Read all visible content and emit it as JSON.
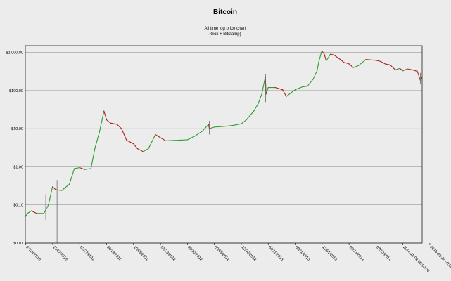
{
  "chart_data": {
    "type": "line",
    "title": "Bitcoin",
    "subtitle_lines": [
      "All time log price chart",
      "(Gox + Bitstamp)"
    ],
    "y_scale": "log",
    "ylim": [
      0.01,
      1500
    ],
    "y_ticks": [
      {
        "value": 1000,
        "label": "$1,000.00"
      },
      {
        "value": 100,
        "label": "$100.00"
      },
      {
        "value": 10,
        "label": "$10.00"
      },
      {
        "value": 1,
        "label": "$1.00"
      },
      {
        "value": 0.1,
        "label": "$0.10"
      },
      {
        "value": 0.01,
        "label": "$0.01"
      }
    ],
    "x_range": [
      "2010-07-16",
      "2015-01-21"
    ],
    "x_ticks": [
      {
        "date": "2010-07-18",
        "label": "07/18/2010"
      },
      {
        "date": "2010-11-07",
        "label": "11/07/2010"
      },
      {
        "date": "2011-02-27",
        "label": "02/27/2011"
      },
      {
        "date": "2011-06-19",
        "label": "06/19/2011"
      },
      {
        "date": "2011-10-09",
        "label": "10/09/2011"
      },
      {
        "date": "2012-01-29",
        "label": "01/29/2012"
      },
      {
        "date": "2012-05-20",
        "label": "05/20/2012"
      },
      {
        "date": "2012-09-09",
        "label": "09/09/2012"
      },
      {
        "date": "2012-12-30",
        "label": "12/30/2012"
      },
      {
        "date": "2013-04-21",
        "label": "04/21/2013"
      },
      {
        "date": "2013-08-11",
        "label": "08/11/2013"
      },
      {
        "date": "2013-12-01",
        "label": "12/01/2013"
      },
      {
        "date": "2014-03-23",
        "label": "03/23/2014"
      },
      {
        "date": "2014-07-13",
        "label": "07/13/2014"
      },
      {
        "date": "2014-11-02",
        "label": "2014-11-02 00:00:00"
      },
      {
        "date": "2015-02-22",
        "label": "2015-02-22 00:00:00"
      }
    ],
    "grid": {
      "horizontal": true,
      "vertical": false
    },
    "colors": {
      "up": "#2e9a2e",
      "down": "#b02020",
      "grid": "#999999",
      "axis": "#000000",
      "background": "#ececec"
    },
    "series": [
      {
        "points": [
          [
            "2010-07-17",
            0.05
          ],
          [
            "2010-07-25",
            0.06
          ],
          [
            "2010-08-10",
            0.07
          ],
          [
            "2010-09-01",
            0.06
          ],
          [
            "2010-10-01",
            0.06
          ],
          [
            "2010-10-20",
            0.1
          ],
          [
            "2010-11-06",
            0.3
          ],
          [
            "2010-11-20",
            0.25
          ],
          [
            "2010-12-15",
            0.24
          ],
          [
            "2011-01-15",
            0.35
          ],
          [
            "2011-02-05",
            0.9
          ],
          [
            "2011-02-27",
            0.95
          ],
          [
            "2011-03-20",
            0.85
          ],
          [
            "2011-04-15",
            0.9
          ],
          [
            "2011-05-01",
            3.0
          ],
          [
            "2011-05-20",
            8.0
          ],
          [
            "2011-06-08",
            29.0
          ],
          [
            "2011-06-19",
            17.0
          ],
          [
            "2011-07-05",
            14.0
          ],
          [
            "2011-08-01",
            13.0
          ],
          [
            "2011-08-20",
            10.0
          ],
          [
            "2011-09-10",
            5.0
          ],
          [
            "2011-10-09",
            4.0
          ],
          [
            "2011-10-25",
            3.0
          ],
          [
            "2011-11-18",
            2.5
          ],
          [
            "2011-12-10",
            3.0
          ],
          [
            "2012-01-08",
            7.0
          ],
          [
            "2012-01-29",
            5.8
          ],
          [
            "2012-02-20",
            4.8
          ],
          [
            "2012-03-20",
            4.9
          ],
          [
            "2012-04-20",
            5.0
          ],
          [
            "2012-05-20",
            5.1
          ],
          [
            "2012-06-20",
            6.4
          ],
          [
            "2012-07-20",
            8.5
          ],
          [
            "2012-08-16",
            13.0
          ],
          [
            "2012-08-19",
            10.0
          ],
          [
            "2012-09-09",
            11.0
          ],
          [
            "2012-10-20",
            11.5
          ],
          [
            "2012-11-20",
            12.0
          ],
          [
            "2012-12-30",
            13.4
          ],
          [
            "2013-01-20",
            17.0
          ],
          [
            "2013-02-20",
            29.0
          ],
          [
            "2013-03-10",
            45.0
          ],
          [
            "2013-03-25",
            80.0
          ],
          [
            "2013-04-09",
            230.0
          ],
          [
            "2013-04-12",
            80.0
          ],
          [
            "2013-04-21",
            120.0
          ],
          [
            "2013-05-20",
            120.0
          ],
          [
            "2013-06-20",
            105.0
          ],
          [
            "2013-07-05",
            70.0
          ],
          [
            "2013-08-11",
            105.0
          ],
          [
            "2013-09-10",
            125.0
          ],
          [
            "2013-10-01",
            130.0
          ],
          [
            "2013-10-25",
            200.0
          ],
          [
            "2013-11-10",
            330.0
          ],
          [
            "2013-11-18",
            600.0
          ],
          [
            "2013-11-30",
            1100.0
          ],
          [
            "2013-12-10",
            900.0
          ],
          [
            "2013-12-18",
            600.0
          ],
          [
            "2014-01-05",
            900.0
          ],
          [
            "2014-01-20",
            850.0
          ],
          [
            "2014-02-15",
            650.0
          ],
          [
            "2014-03-01",
            550.0
          ],
          [
            "2014-03-23",
            500.0
          ],
          [
            "2014-04-10",
            400.0
          ],
          [
            "2014-05-01",
            450.0
          ],
          [
            "2014-06-01",
            650.0
          ],
          [
            "2014-07-13",
            620.0
          ],
          [
            "2014-08-01",
            580.0
          ],
          [
            "2014-08-20",
            500.0
          ],
          [
            "2014-09-10",
            470.0
          ],
          [
            "2014-10-01",
            350.0
          ],
          [
            "2014-10-20",
            380.0
          ],
          [
            "2014-11-02",
            330.0
          ],
          [
            "2014-11-20",
            370.0
          ],
          [
            "2014-12-10",
            350.0
          ],
          [
            "2015-01-01",
            320.0
          ],
          [
            "2015-01-14",
            180.0
          ],
          [
            "2015-01-21",
            230.0
          ]
        ]
      }
    ],
    "spikes": [
      {
        "date": "2010-11-25",
        "low": 0.01,
        "high": 0.45
      },
      {
        "date": "2010-10-09",
        "low": 0.04,
        "high": 0.19
      },
      {
        "date": "2013-04-10",
        "low": 50.0,
        "high": 266.0
      },
      {
        "date": "2012-08-19",
        "low": 7.0,
        "high": 16.0
      },
      {
        "date": "2013-12-18",
        "low": 400.0,
        "high": 900.0
      },
      {
        "date": "2015-01-14",
        "low": 150.0,
        "high": 290.0
      }
    ]
  }
}
